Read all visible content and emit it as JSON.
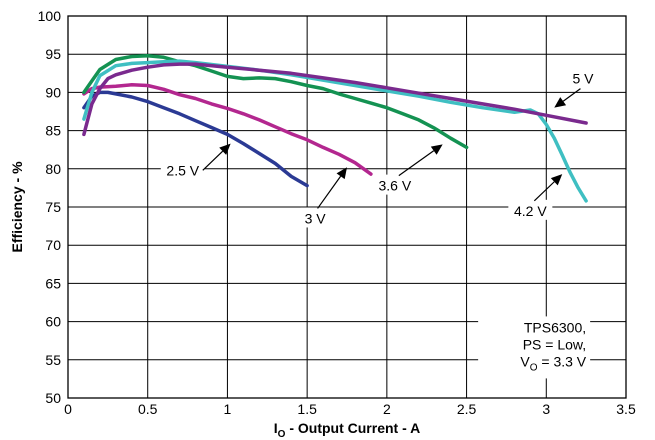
{
  "chart_data": {
    "type": "line",
    "xlabel": {
      "main": "I",
      "sub": "O",
      "rest": " - Output Current - A"
    },
    "ylabel": "Efficiency - %",
    "xlim": [
      0,
      3.5
    ],
    "ylim": [
      50,
      100
    ],
    "x_ticks": [
      "0",
      "0.5",
      "1",
      "1.5",
      "2",
      "2.5",
      "3",
      "3.5"
    ],
    "y_ticks": [
      "50",
      "55",
      "60",
      "65",
      "70",
      "75",
      "80",
      "85",
      "90",
      "95",
      "100"
    ],
    "grid": true,
    "colors": {
      "2.5 V": "#2b3a94",
      "3 V": "#b3278f",
      "3.6 V": "#149252",
      "4.2 V": "#3fbfc2",
      "5 V": "#7a2a8e"
    },
    "series": [
      {
        "name": "2.5 V",
        "x": [
          0.1,
          0.15,
          0.2,
          0.25,
          0.3,
          0.4,
          0.5,
          0.6,
          0.7,
          0.8,
          0.9,
          1.0,
          1.1,
          1.2,
          1.3,
          1.4,
          1.5
        ],
        "y": [
          88.0,
          89.5,
          90.0,
          90.0,
          89.8,
          89.4,
          88.8,
          88.0,
          87.2,
          86.3,
          85.4,
          84.5,
          83.3,
          82.0,
          80.7,
          79.0,
          77.8
        ]
      },
      {
        "name": "3 V",
        "x": [
          0.1,
          0.15,
          0.2,
          0.3,
          0.4,
          0.5,
          0.6,
          0.7,
          0.8,
          0.9,
          1.0,
          1.1,
          1.2,
          1.3,
          1.4,
          1.5,
          1.6,
          1.7,
          1.8,
          1.9
        ],
        "y": [
          89.8,
          90.5,
          90.7,
          90.8,
          91.0,
          90.9,
          90.4,
          89.7,
          89.2,
          88.5,
          87.9,
          87.2,
          86.4,
          85.5,
          84.6,
          83.8,
          82.8,
          81.9,
          80.8,
          79.3
        ]
      },
      {
        "name": "3.6 V",
        "x": [
          0.1,
          0.15,
          0.2,
          0.3,
          0.4,
          0.5,
          0.6,
          0.7,
          0.8,
          0.9,
          1.0,
          1.1,
          1.2,
          1.3,
          1.4,
          1.5,
          1.6,
          1.7,
          1.8,
          1.9,
          2.0,
          2.1,
          2.2,
          2.3,
          2.4,
          2.5
        ],
        "y": [
          90.0,
          91.5,
          93.0,
          94.3,
          94.7,
          94.8,
          94.6,
          94.0,
          93.5,
          92.8,
          92.1,
          91.8,
          91.9,
          91.8,
          91.4,
          90.9,
          90.5,
          89.8,
          89.2,
          88.6,
          88.0,
          87.2,
          86.4,
          85.3,
          84.0,
          82.8
        ]
      },
      {
        "name": "4.2 V",
        "x": [
          0.1,
          0.15,
          0.2,
          0.3,
          0.4,
          0.5,
          0.6,
          0.7,
          0.8,
          1.0,
          1.2,
          1.4,
          1.6,
          1.8,
          2.0,
          2.2,
          2.4,
          2.6,
          2.8,
          2.9,
          2.95,
          3.0,
          3.05,
          3.1,
          3.15,
          3.2,
          3.25
        ],
        "y": [
          86.5,
          90.0,
          92.2,
          93.5,
          93.8,
          93.9,
          94.0,
          94.1,
          93.9,
          93.4,
          92.9,
          92.3,
          91.6,
          90.9,
          90.2,
          89.5,
          88.7,
          88.0,
          87.4,
          87.7,
          87.2,
          85.8,
          84.0,
          81.8,
          79.5,
          77.5,
          75.8
        ]
      },
      {
        "name": "5 V",
        "x": [
          0.1,
          0.15,
          0.2,
          0.25,
          0.3,
          0.4,
          0.5,
          0.6,
          0.7,
          0.8,
          1.0,
          1.2,
          1.4,
          1.6,
          1.8,
          2.0,
          2.2,
          2.4,
          2.6,
          2.8,
          3.0,
          3.25
        ],
        "y": [
          84.5,
          88.5,
          90.5,
          91.8,
          92.3,
          92.9,
          93.3,
          93.6,
          93.7,
          93.7,
          93.3,
          92.9,
          92.5,
          91.9,
          91.3,
          90.6,
          89.9,
          89.2,
          88.5,
          87.8,
          87.0,
          86.0
        ]
      }
    ],
    "series_labels": [
      {
        "series": "2.5 V",
        "text": "2.5 V",
        "at": [
          0.72,
          79.8
        ],
        "arrow_to": [
          1.02,
          83.3
        ]
      },
      {
        "series": "3 V",
        "text": "3 V",
        "at": [
          1.55,
          73.5
        ],
        "arrow_to": [
          1.75,
          80.2
        ]
      },
      {
        "series": "3.6 V",
        "text": "3.6 V",
        "at": [
          2.05,
          77.8
        ],
        "arrow_to": [
          2.35,
          83.2
        ]
      },
      {
        "series": "4.2 V",
        "text": "4.2 V",
        "at": [
          2.9,
          74.5
        ],
        "arrow_to": [
          3.1,
          79.3
        ]
      },
      {
        "series": "5 V",
        "text": "5 V",
        "at": [
          3.23,
          91.8
        ],
        "arrow_to": [
          3.05,
          88.0
        ]
      }
    ],
    "note": [
      "TPS6300,",
      "PS = Low,",
      {
        "main": "V",
        "sub": "O",
        "rest": " = 3.3 V"
      }
    ]
  }
}
